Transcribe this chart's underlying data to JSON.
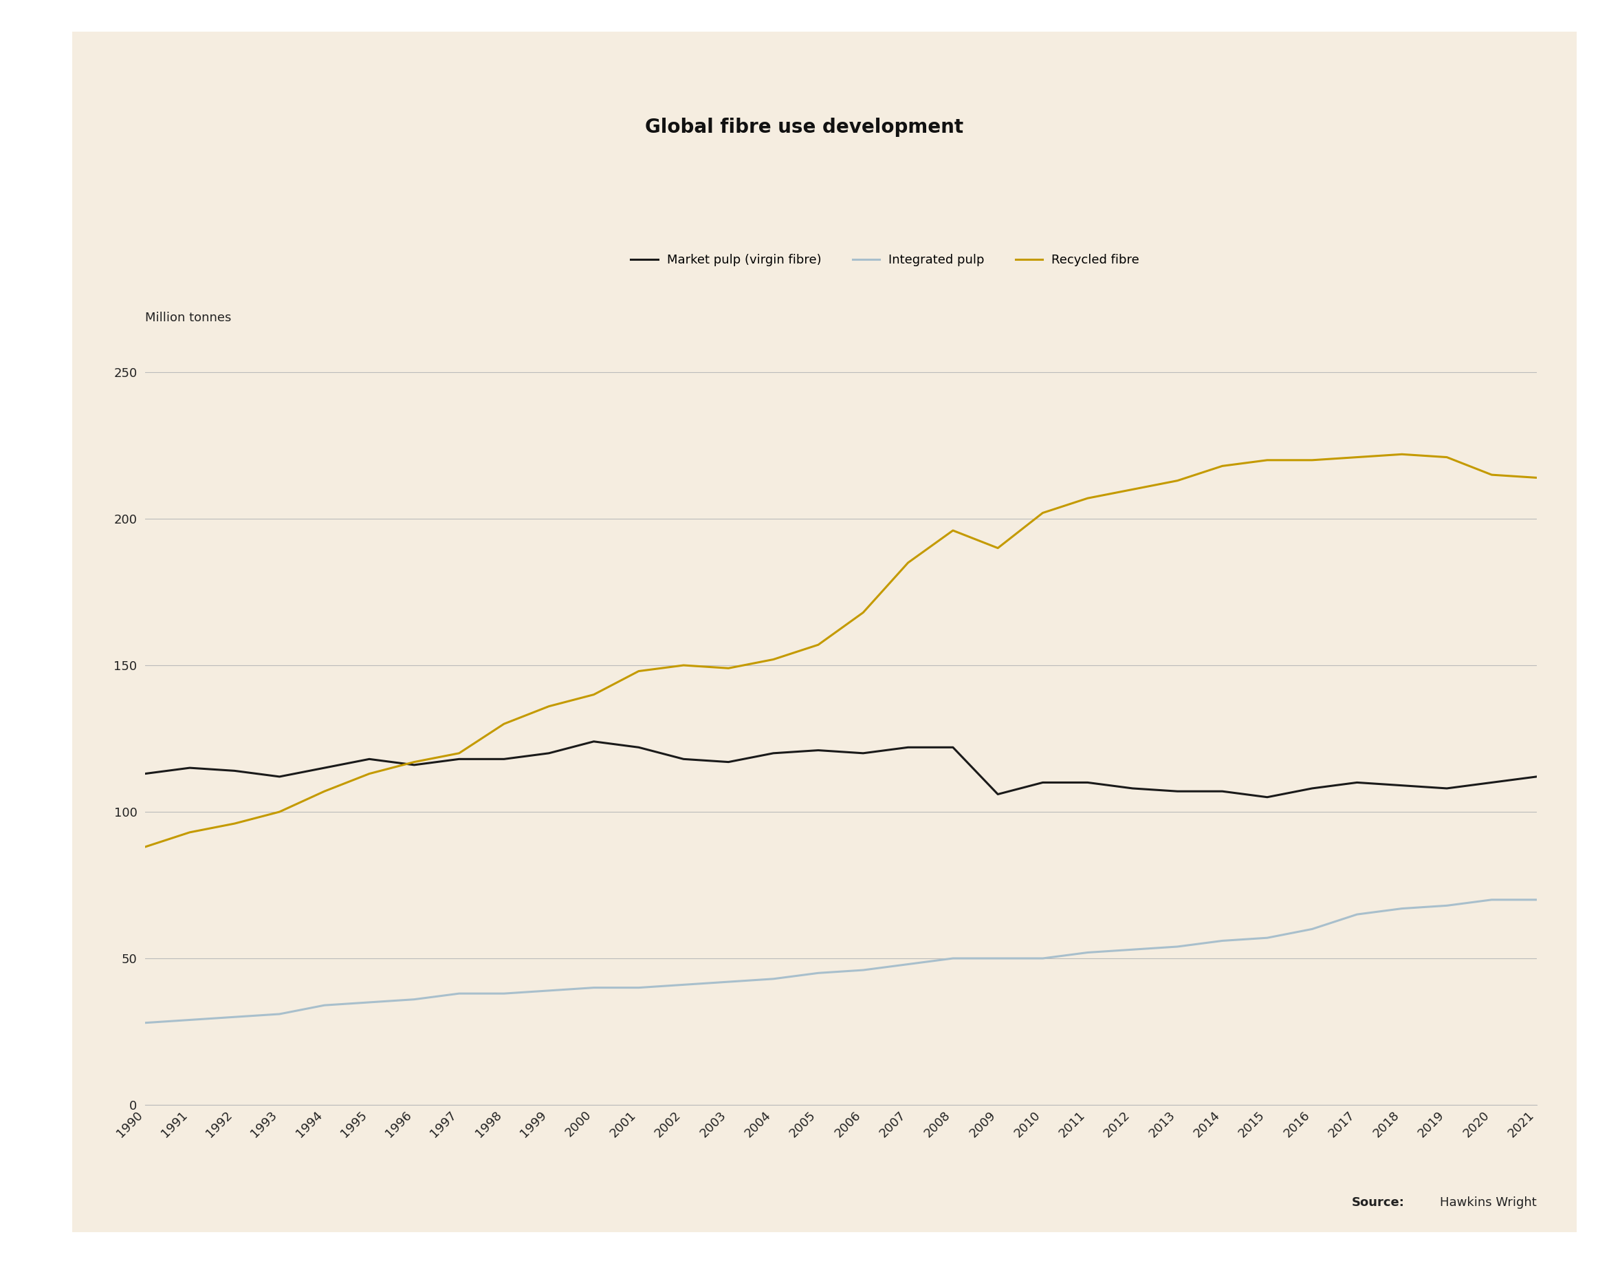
{
  "title": "Global fibre use development",
  "ylabel": "Million tonnes",
  "background_color": "#f5ede0",
  "outer_background": "#ffffff",
  "years": [
    1990,
    1991,
    1992,
    1993,
    1994,
    1995,
    1996,
    1997,
    1998,
    1999,
    2000,
    2001,
    2002,
    2003,
    2004,
    2005,
    2006,
    2007,
    2008,
    2009,
    2010,
    2011,
    2012,
    2013,
    2014,
    2015,
    2016,
    2017,
    2018,
    2019,
    2020,
    2021
  ],
  "market_pulp": [
    113,
    115,
    114,
    112,
    115,
    118,
    116,
    118,
    118,
    120,
    124,
    122,
    118,
    117,
    120,
    121,
    120,
    122,
    122,
    106,
    110,
    110,
    108,
    107,
    107,
    105,
    108,
    110,
    109,
    108,
    110,
    112
  ],
  "integrated_pulp": [
    28,
    29,
    30,
    31,
    34,
    35,
    36,
    38,
    38,
    39,
    40,
    40,
    41,
    42,
    43,
    45,
    46,
    48,
    50,
    50,
    50,
    52,
    53,
    54,
    56,
    57,
    60,
    65,
    67,
    68,
    70,
    70
  ],
  "recycled_fibre": [
    88,
    93,
    96,
    100,
    107,
    113,
    117,
    120,
    130,
    136,
    140,
    148,
    150,
    149,
    152,
    157,
    168,
    185,
    196,
    190,
    202,
    207,
    210,
    213,
    218,
    220,
    220,
    221,
    222,
    221,
    215,
    214
  ],
  "market_pulp_color": "#1a1a1a",
  "integrated_pulp_color": "#a8bfcc",
  "recycled_fibre_color": "#c49a00",
  "ylim": [
    0,
    260
  ],
  "yticks": [
    0,
    50,
    100,
    150,
    200,
    250
  ],
  "legend_labels": [
    "Market pulp (virgin fibre)",
    "Integrated pulp",
    "Recycled fibre"
  ],
  "grid_color": "#bbbbbb",
  "tick_color": "#222222",
  "title_fontsize": 20,
  "label_fontsize": 13,
  "tick_fontsize": 13,
  "legend_fontsize": 13,
  "source_fontsize": 13,
  "line_width": 2.2
}
